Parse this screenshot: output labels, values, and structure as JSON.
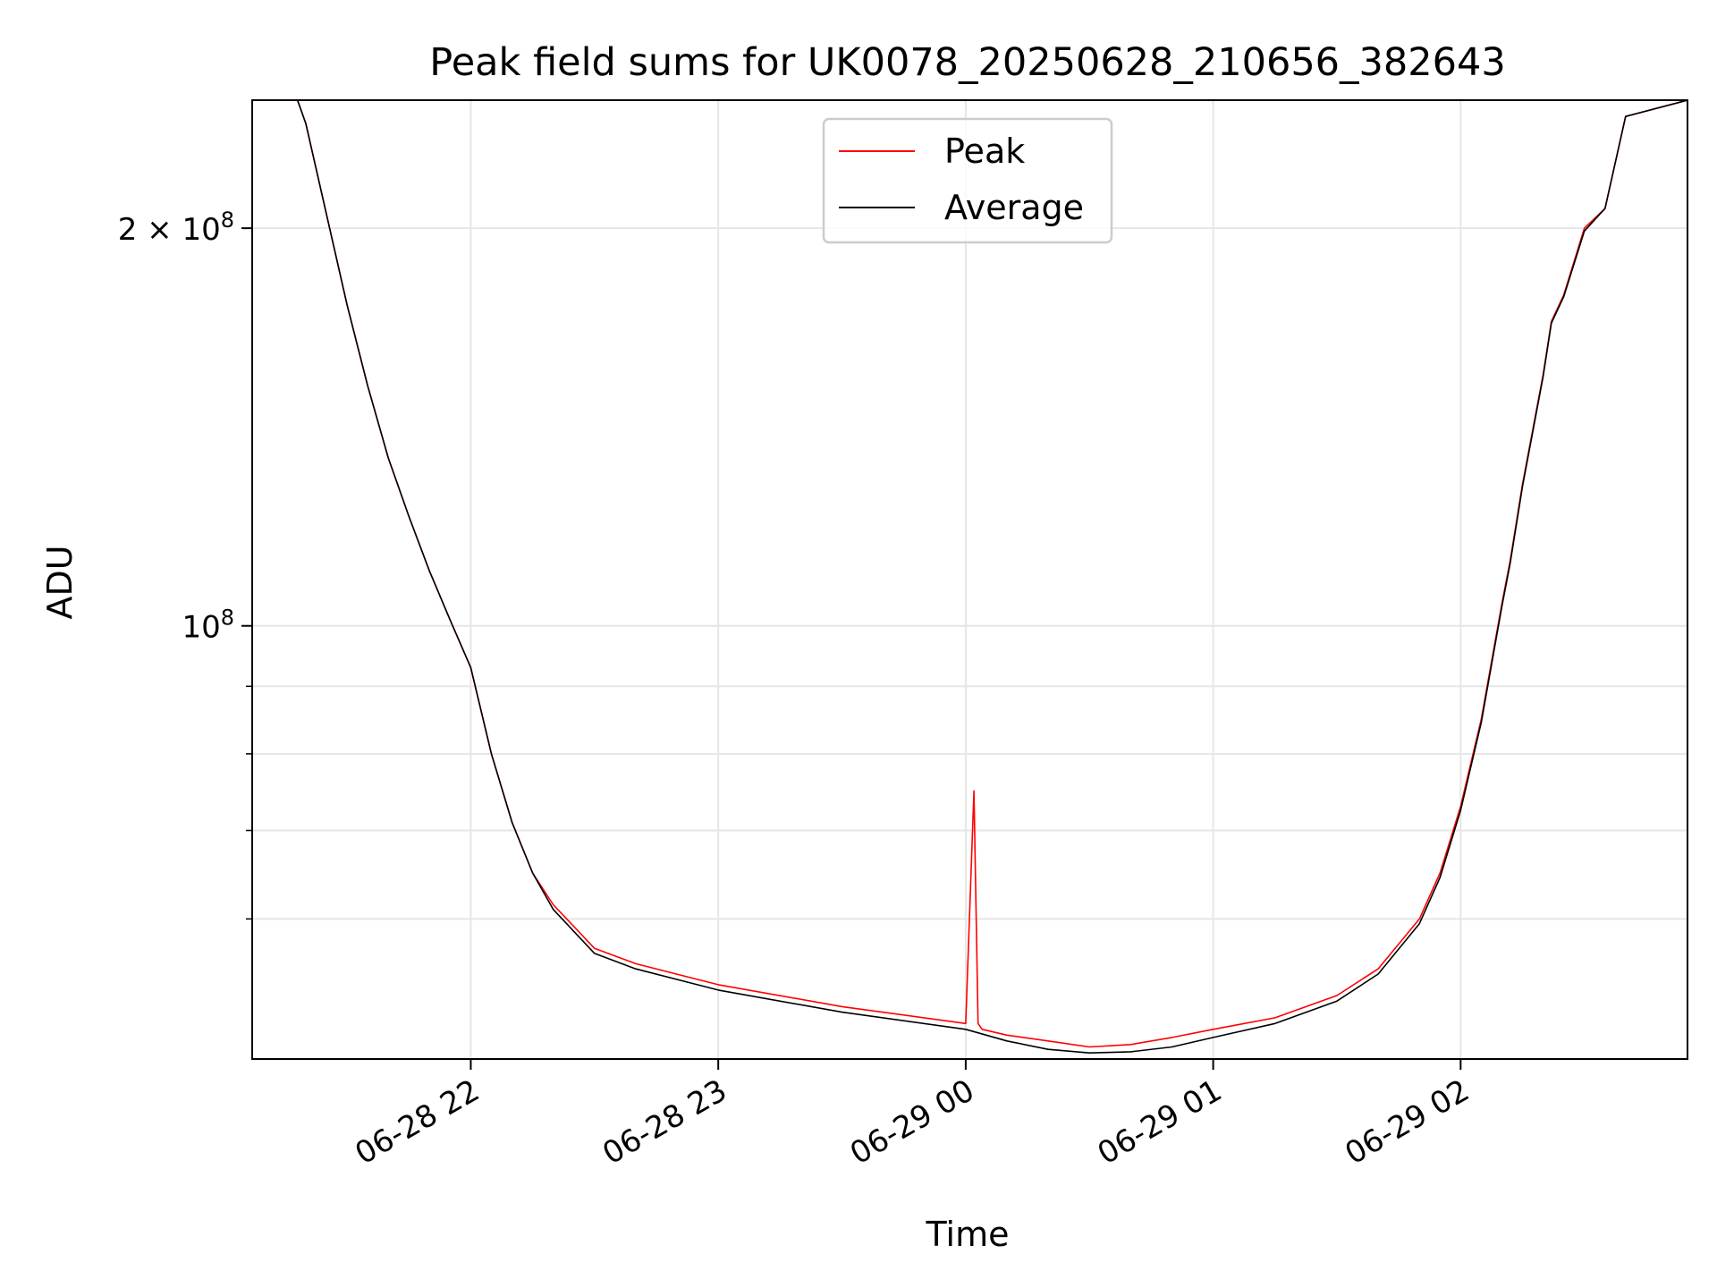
{
  "chart_data": {
    "type": "line",
    "title": "Peak field sums for UK0078_20250628_210656_382643",
    "xlabel": "Time",
    "ylabel": "ADU",
    "x_range": [
      "2025-06-28 21:07",
      "2025-06-29 02:55"
    ],
    "y_scale": "log",
    "ylim": [
      47000000,
      250000000
    ],
    "grid": true,
    "legend_position": "upper center",
    "x_ticks": [
      {
        "value": "2025-06-28 22:00",
        "label": "06-28 22"
      },
      {
        "value": "2025-06-28 23:00",
        "label": "06-28 23"
      },
      {
        "value": "2025-06-29 00:00",
        "label": "06-29 00"
      },
      {
        "value": "2025-06-29 01:00",
        "label": "06-29 01"
      },
      {
        "value": "2025-06-29 02:00",
        "label": "06-29 02"
      }
    ],
    "y_major_ticks": [
      {
        "value": 100000000,
        "base": "10",
        "exp": "8",
        "mantissa": ""
      },
      {
        "value": 200000000,
        "base": "10",
        "exp": "8",
        "mantissa": "2"
      }
    ],
    "y_minor_ticks": [
      60000000,
      70000000,
      80000000,
      90000000
    ],
    "series": [
      {
        "name": "Peak",
        "color": "#ff0000",
        "x": [
          "2025-06-28 21:07",
          "2025-06-28 21:18",
          "2025-06-28 21:20",
          "2025-06-28 21:25",
          "2025-06-28 21:30",
          "2025-06-28 21:35",
          "2025-06-28 21:40",
          "2025-06-28 21:45",
          "2025-06-28 21:50",
          "2025-06-28 21:55",
          "2025-06-28 22:00",
          "2025-06-28 22:05",
          "2025-06-28 22:10",
          "2025-06-28 22:15",
          "2025-06-28 22:20",
          "2025-06-28 22:30",
          "2025-06-28 22:40",
          "2025-06-28 23:00",
          "2025-06-28 23:30",
          "2025-06-29 00:00",
          "2025-06-29 00:02",
          "2025-06-29 00:03",
          "2025-06-29 00:04",
          "2025-06-29 00:10",
          "2025-06-29 00:20",
          "2025-06-29 00:30",
          "2025-06-29 00:40",
          "2025-06-29 00:50",
          "2025-06-29 01:00",
          "2025-06-29 01:15",
          "2025-06-29 01:30",
          "2025-06-29 01:40",
          "2025-06-29 01:50",
          "2025-06-29 01:55",
          "2025-06-29 02:00",
          "2025-06-29 02:05",
          "2025-06-29 02:10",
          "2025-06-29 02:12",
          "2025-06-29 02:15",
          "2025-06-29 02:20",
          "2025-06-29 02:22",
          "2025-06-29 02:25",
          "2025-06-29 02:30",
          "2025-06-29 02:35",
          "2025-06-29 02:40",
          "2025-06-29 02:55"
        ],
        "y": [
          250000000,
          250000000,
          240000000,
          205000000,
          175000000,
          152000000,
          134000000,
          121000000,
          110000000,
          101000000,
          93000000,
          80000000,
          71000000,
          65000000,
          61500000,
          57000000,
          55500000,
          53500000,
          51500000,
          50000000,
          75000000,
          50000000,
          49500000,
          49000000,
          48500000,
          48000000,
          48200000,
          48800000,
          49500000,
          50500000,
          52500000,
          55000000,
          60000000,
          65000000,
          73000000,
          85000000,
          104000000,
          112000000,
          128000000,
          155000000,
          170000000,
          178000000,
          200000000,
          207000000,
          243000000,
          250000000
        ]
      },
      {
        "name": "Average",
        "color": "#000000",
        "x": [
          "2025-06-28 21:07",
          "2025-06-28 21:18",
          "2025-06-28 21:20",
          "2025-06-28 21:25",
          "2025-06-28 21:30",
          "2025-06-28 21:35",
          "2025-06-28 21:40",
          "2025-06-28 21:45",
          "2025-06-28 21:50",
          "2025-06-28 21:55",
          "2025-06-28 22:00",
          "2025-06-28 22:05",
          "2025-06-28 22:10",
          "2025-06-28 22:15",
          "2025-06-28 22:20",
          "2025-06-28 22:30",
          "2025-06-28 22:40",
          "2025-06-28 23:00",
          "2025-06-28 23:30",
          "2025-06-29 00:00",
          "2025-06-29 00:10",
          "2025-06-29 00:20",
          "2025-06-29 00:30",
          "2025-06-29 00:40",
          "2025-06-29 00:50",
          "2025-06-29 01:00",
          "2025-06-29 01:15",
          "2025-06-29 01:30",
          "2025-06-29 01:40",
          "2025-06-29 01:50",
          "2025-06-29 01:55",
          "2025-06-29 02:00",
          "2025-06-29 02:05",
          "2025-06-29 02:10",
          "2025-06-29 02:12",
          "2025-06-29 02:15",
          "2025-06-29 02:20",
          "2025-06-29 02:22",
          "2025-06-29 02:25",
          "2025-06-29 02:30",
          "2025-06-29 02:35",
          "2025-06-29 02:40",
          "2025-06-29 02:55"
        ],
        "y": [
          250000000,
          250000000,
          240000000,
          205000000,
          175000000,
          152000000,
          134000000,
          121000000,
          110000000,
          101000000,
          93000000,
          80000000,
          71000000,
          65000000,
          61000000,
          56500000,
          55000000,
          53000000,
          51000000,
          49500000,
          48500000,
          47800000,
          47500000,
          47600000,
          48000000,
          48800000,
          50000000,
          52000000,
          54500000,
          59500000,
          64500000,
          72500000,
          84500000,
          103500000,
          111500000,
          127500000,
          154500000,
          169500000,
          177500000,
          199000000,
          207000000,
          243000000,
          250000000
        ]
      }
    ]
  }
}
